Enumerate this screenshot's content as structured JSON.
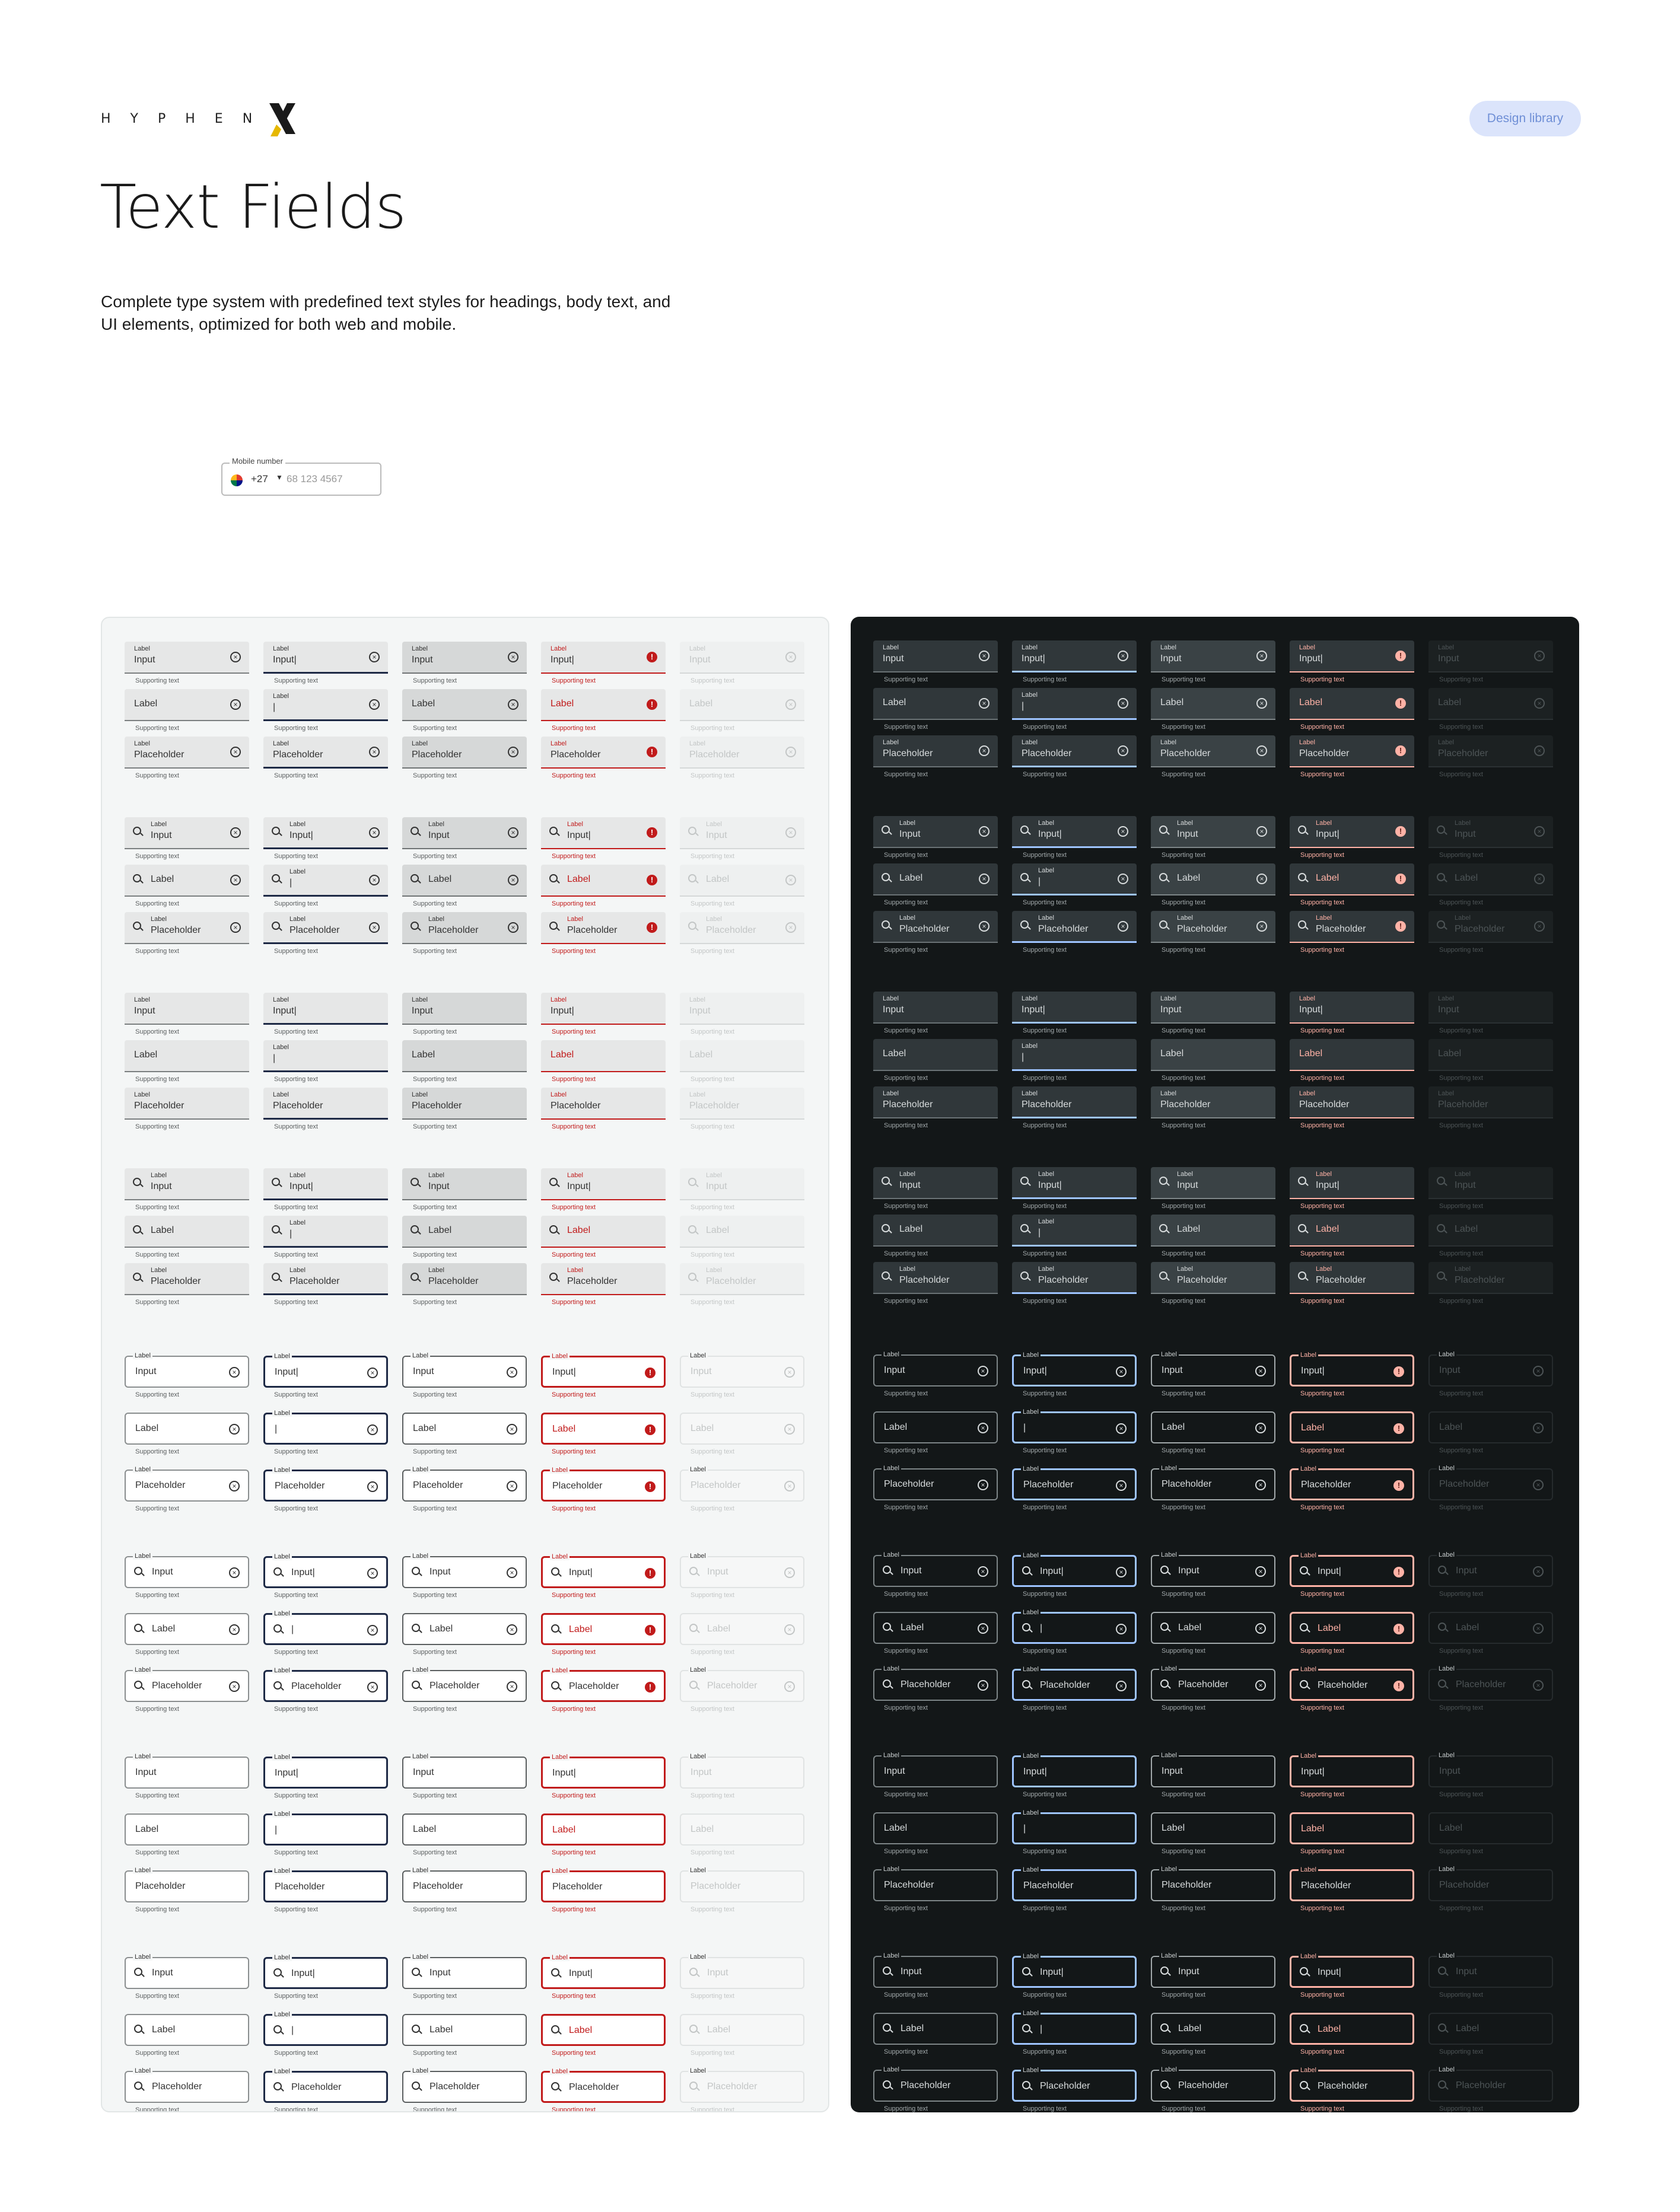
{
  "brand": {
    "logo_text": "HYPHEN",
    "logo_mark": "X"
  },
  "header": {
    "badge": "Design library",
    "title": "Text Fields",
    "description": "Complete type system with predefined text styles for headings, body text, and UI elements, optimized for both web and mobile."
  },
  "mobile_field": {
    "label": "Mobile number",
    "country_code": "+27",
    "number": "68 123 4567"
  },
  "strings": {
    "label": "Label",
    "input": "Input",
    "input_cursor": "Input|",
    "cursor": "|",
    "placeholder": "Placeholder",
    "supporting": "Supporting text"
  },
  "states": [
    "default",
    "focus",
    "hover",
    "error",
    "disabled"
  ],
  "themes": [
    "light",
    "dark"
  ],
  "colors": {
    "light_bg": "#f4f6f6",
    "dark_bg": "#131718",
    "focus_light": "#1e2a46",
    "focus_dark": "#9ec4ff",
    "error_light": "#c11b1b",
    "error_dark": "#ffb2a6",
    "badge_bg": "#dbe4fb"
  },
  "icons": {
    "search": "search-icon",
    "clear": "clear-circle-icon",
    "error": "error-icon"
  }
}
